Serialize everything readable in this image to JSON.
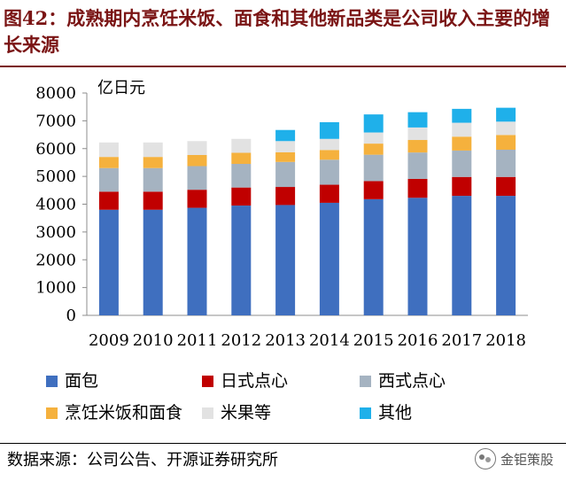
{
  "title": "图42：成熟期内烹饪米饭、面食和其他新品类是公司收入主要的增长来源",
  "source": "数据来源：公司公告、开源证券研究所",
  "watermark": "金钜策股",
  "chart_data": {
    "type": "bar",
    "stacked": true,
    "unit_label": "亿日元",
    "ylim": [
      0,
      8000
    ],
    "yticks": [
      0,
      1000,
      2000,
      3000,
      4000,
      5000,
      6000,
      7000,
      8000
    ],
    "categories": [
      "2009",
      "2010",
      "2011",
      "2012",
      "2013",
      "2014",
      "2015",
      "2016",
      "2017",
      "2018"
    ],
    "grid": false,
    "legend_position": "bottom",
    "series": [
      {
        "name": "面包",
        "color": "#3f6fbf",
        "values": [
          3800,
          3800,
          3870,
          3950,
          3970,
          4050,
          4180,
          4230,
          4300,
          4300
        ]
      },
      {
        "name": "日式点心",
        "color": "#c00000",
        "values": [
          650,
          650,
          650,
          650,
          650,
          650,
          650,
          680,
          680,
          680
        ]
      },
      {
        "name": "西式点心",
        "color": "#a5b3c1",
        "values": [
          850,
          850,
          850,
          850,
          900,
          900,
          950,
          950,
          950,
          980
        ]
      },
      {
        "name": "烹饪米饭和面食",
        "color": "#f5b13d",
        "values": [
          400,
          400,
          400,
          400,
          350,
          350,
          400,
          450,
          500,
          530
        ]
      },
      {
        "name": "米果等",
        "color": "#e2e2e2",
        "values": [
          520,
          520,
          500,
          500,
          400,
          400,
          400,
          450,
          500,
          480
        ]
      },
      {
        "name": "其他",
        "color": "#1fb0ea",
        "values": [
          0,
          0,
          0,
          0,
          400,
          600,
          650,
          550,
          500,
          500
        ]
      }
    ]
  }
}
